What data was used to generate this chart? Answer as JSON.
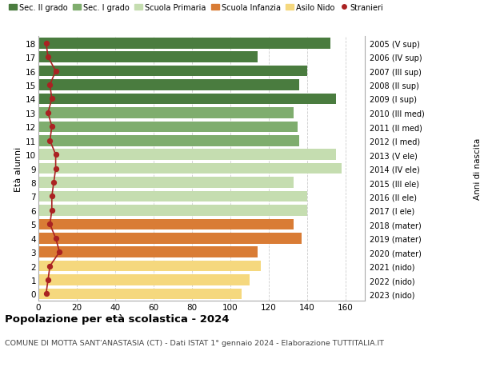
{
  "ages": [
    18,
    17,
    16,
    15,
    14,
    13,
    12,
    11,
    10,
    9,
    8,
    7,
    6,
    5,
    4,
    3,
    2,
    1,
    0
  ],
  "right_labels": [
    "2005 (V sup)",
    "2006 (IV sup)",
    "2007 (III sup)",
    "2008 (II sup)",
    "2009 (I sup)",
    "2010 (III med)",
    "2011 (II med)",
    "2012 (I med)",
    "2013 (V ele)",
    "2014 (IV ele)",
    "2015 (III ele)",
    "2016 (II ele)",
    "2017 (I ele)",
    "2018 (mater)",
    "2019 (mater)",
    "2020 (mater)",
    "2021 (nido)",
    "2022 (nido)",
    "2023 (nido)"
  ],
  "bar_values": [
    152,
    114,
    140,
    136,
    155,
    133,
    135,
    136,
    155,
    158,
    133,
    140,
    140,
    133,
    137,
    114,
    116,
    110,
    106
  ],
  "bar_colors": [
    "#4a7c3f",
    "#4a7c3f",
    "#4a7c3f",
    "#4a7c3f",
    "#4a7c3f",
    "#7fad6e",
    "#7fad6e",
    "#7fad6e",
    "#c5ddb0",
    "#c5ddb0",
    "#c5ddb0",
    "#c5ddb0",
    "#c5ddb0",
    "#d97c35",
    "#d97c35",
    "#d97c35",
    "#f5d87e",
    "#f5d87e",
    "#f5d87e"
  ],
  "stranieri_values": [
    4,
    5,
    9,
    6,
    7,
    5,
    7,
    6,
    9,
    9,
    8,
    7,
    7,
    6,
    9,
    11,
    6,
    5,
    4
  ],
  "legend_labels": [
    "Sec. II grado",
    "Sec. I grado",
    "Scuola Primaria",
    "Scuola Infanzia",
    "Asilo Nido",
    "Stranieri"
  ],
  "legend_colors": [
    "#4a7c3f",
    "#7fad6e",
    "#c5ddb0",
    "#d97c35",
    "#f5d87e",
    "#aa2222"
  ],
  "ylabel": "Età alunni",
  "right_ylabel": "Anni di nascita",
  "title": "Popolazione per età scolastica - 2024",
  "subtitle": "COMUNE DI MOTTA SANT'ANASTASIA (CT) - Dati ISTAT 1° gennaio 2024 - Elaborazione TUTTITALIA.IT",
  "xlim": [
    0,
    170
  ],
  "xticks": [
    0,
    20,
    40,
    60,
    80,
    100,
    120,
    140,
    160
  ],
  "bg_color": "#ffffff",
  "grid_color": "#cccccc",
  "stranieri_color": "#aa2222"
}
